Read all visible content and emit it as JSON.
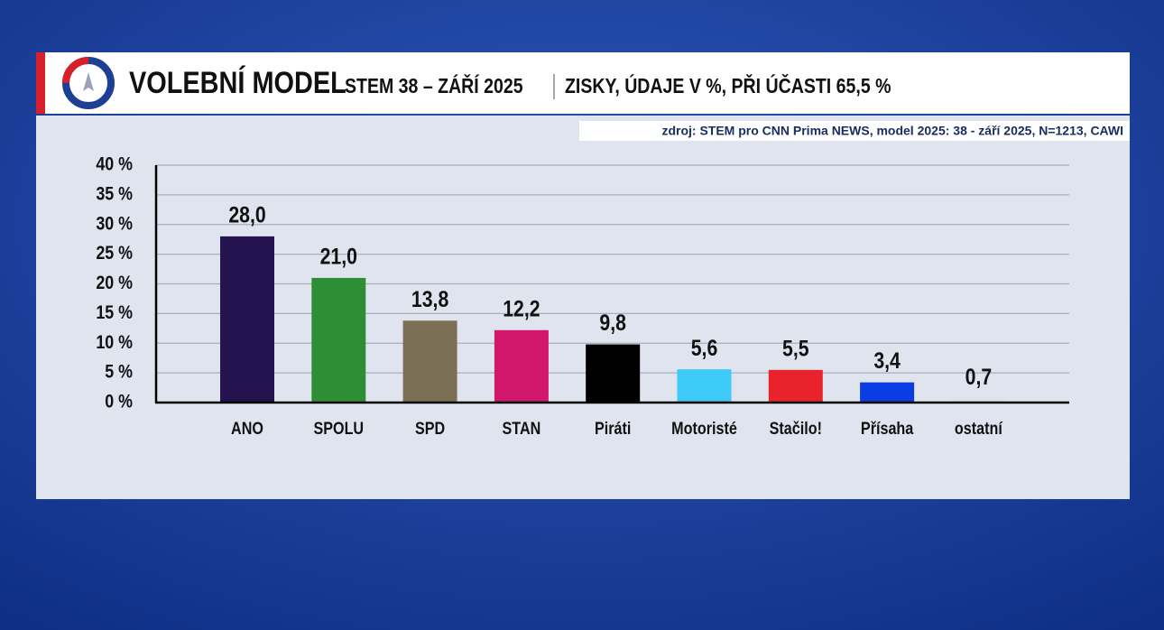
{
  "chart_data": {
    "type": "bar",
    "title": "VOLEBNÍ MODEL",
    "subtitle": "STEM 38 – ZÁŘÍ 2025",
    "note": "ZISKY, ÚDAJE V %, PŘI ÚČASTI 65,5 %",
    "source": "zdroj: STEM pro CNN Prima NEWS, model 2025: 38 - září 2025, N=1213, CAWI",
    "categories": [
      "ANO",
      "SPOLU",
      "SPD",
      "STAN",
      "Piráti",
      "Motoristé",
      "Stačilo!",
      "Přísaha",
      "ostatní"
    ],
    "values": [
      28.0,
      21.0,
      13.8,
      12.2,
      9.8,
      5.6,
      5.5,
      3.4,
      0.7
    ],
    "value_labels": [
      "28,0",
      "21,0",
      "13,8",
      "12,2",
      "9,8",
      "5,6",
      "5,5",
      "3,4",
      "0,7"
    ],
    "colors": [
      "#24134f",
      "#2e8e35",
      "#7b6f55",
      "#d1186c",
      "#000000",
      "#3dcaf6",
      "#e8232b",
      "#0b3de2",
      "#d9dfeb"
    ],
    "ylim": [
      0,
      40
    ],
    "yticks": [
      {
        "value": 0,
        "label": "0 %"
      },
      {
        "value": 5,
        "label": "5 %"
      },
      {
        "value": 10,
        "label": "10 %"
      },
      {
        "value": 15,
        "label": "15 %"
      },
      {
        "value": 20,
        "label": "20 %"
      },
      {
        "value": 25,
        "label": "25 %"
      },
      {
        "value": 30,
        "label": "30 %"
      },
      {
        "value": 35,
        "label": "35 %"
      },
      {
        "value": 40,
        "label": "40 %"
      }
    ],
    "grid": true
  }
}
